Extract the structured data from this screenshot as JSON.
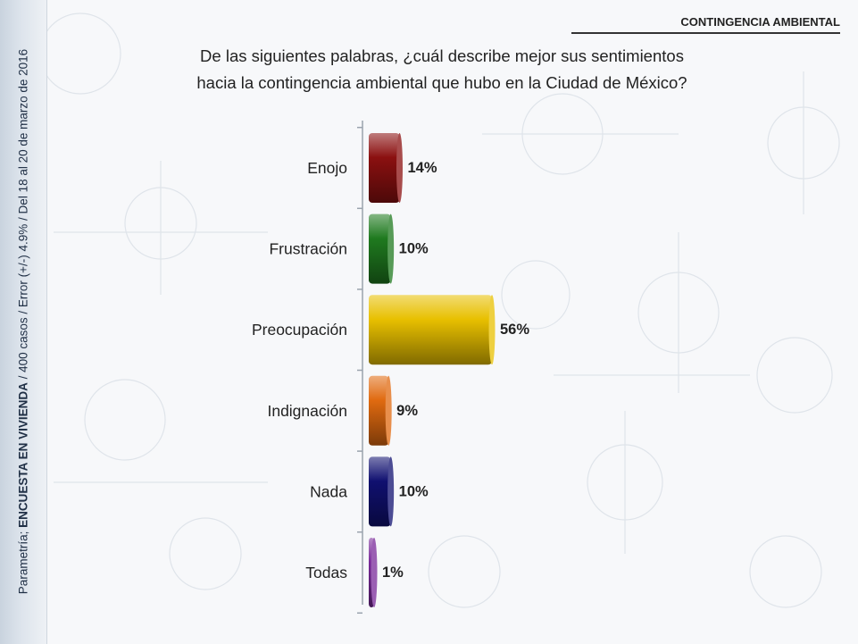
{
  "header": {
    "section_title": "CONTINGENCIA AMBIENTAL"
  },
  "question": {
    "line1": "De las siguientes palabras, ¿cuál describe mejor sus sentimientos",
    "line2": "hacia la contingencia ambiental que hubo en la Ciudad de México?"
  },
  "side_note": {
    "prefix": "Parametría; ",
    "bold": "ENCUESTA EN VIVIENDA",
    "suffix": " / 400 casos / Error (+/-) 4.9% / Del 18 al 20 de marzo de 2016"
  },
  "colors": {
    "background": "#f7f8fa",
    "accent": "#1f2f45"
  },
  "chart_data": {
    "type": "bar",
    "orientation": "horizontal",
    "categories": [
      "Enojo",
      "Frustración",
      "Preocupación",
      "Indignación",
      "Nada",
      "Todas"
    ],
    "values": [
      14,
      10,
      56,
      9,
      10,
      1
    ],
    "value_labels": [
      "14%",
      "10%",
      "56%",
      "9%",
      "10%",
      "1%"
    ],
    "colors": [
      "#8b1010",
      "#1f7a1f",
      "#e8c000",
      "#e06a10",
      "#101070",
      "#7a2a9a"
    ],
    "xlim": [
      0,
      56
    ],
    "title": "",
    "xlabel": "",
    "ylabel": ""
  }
}
